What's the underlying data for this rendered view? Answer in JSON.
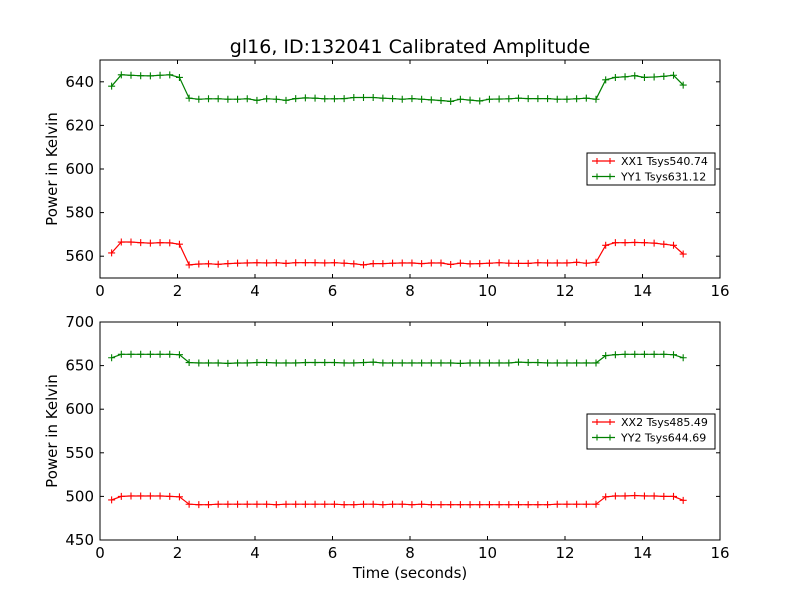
{
  "title": "gl16, ID:132041 Calibrated Amplitude",
  "chart_data": [
    {
      "type": "line",
      "ylabel": "Power in Kelvin",
      "xlabel": "",
      "xlim": [
        0,
        16
      ],
      "ylim": [
        550,
        650
      ],
      "xticks": [
        0,
        2,
        4,
        6,
        8,
        10,
        12,
        14,
        16
      ],
      "yticks": [
        560,
        580,
        600,
        620,
        640
      ],
      "legend": "right",
      "x": [
        0.3,
        0.55,
        0.8,
        1.05,
        1.3,
        1.55,
        1.8,
        2.05,
        2.3,
        2.55,
        2.8,
        3.05,
        3.3,
        3.55,
        3.8,
        4.05,
        4.3,
        4.55,
        4.8,
        5.05,
        5.3,
        5.55,
        5.8,
        6.05,
        6.3,
        6.55,
        6.8,
        7.05,
        7.3,
        7.55,
        7.8,
        8.05,
        8.3,
        8.55,
        8.8,
        9.05,
        9.3,
        9.55,
        9.8,
        10.05,
        10.3,
        10.55,
        10.8,
        11.05,
        11.3,
        11.55,
        11.8,
        12.05,
        12.3,
        12.55,
        12.8,
        13.05,
        13.3,
        13.55,
        13.8,
        14.05,
        14.3,
        14.55,
        14.8,
        15.05
      ],
      "series": [
        {
          "name": "XX1 Tsys540.74",
          "color": "#ff0000",
          "values": [
            561.5,
            566.5,
            566.5,
            566.2,
            566.0,
            566.2,
            566.1,
            565.5,
            556.0,
            556.4,
            556.5,
            556.3,
            556.6,
            556.8,
            556.9,
            557.0,
            556.9,
            557.0,
            556.7,
            557.0,
            557.0,
            557.0,
            556.9,
            557.0,
            556.8,
            556.5,
            556.0,
            556.6,
            556.6,
            556.8,
            556.9,
            556.9,
            556.6,
            556.9,
            556.9,
            556.2,
            556.8,
            556.5,
            556.6,
            556.8,
            557.0,
            556.8,
            556.7,
            556.7,
            557.0,
            556.9,
            556.9,
            556.9,
            557.2,
            556.8,
            557.2,
            565.0,
            566.2,
            566.2,
            566.3,
            566.2,
            566.0,
            565.5,
            565.0,
            561.0
          ]
        },
        {
          "name": "YY1 Tsys631.12",
          "color": "#008000",
          "values": [
            638.0,
            643.2,
            643.0,
            642.8,
            642.7,
            643.0,
            643.2,
            642.0,
            632.5,
            632.0,
            632.2,
            632.2,
            632.0,
            632.0,
            632.2,
            631.5,
            632.2,
            632.0,
            631.5,
            632.3,
            632.6,
            632.5,
            632.2,
            632.2,
            632.3,
            632.8,
            632.8,
            632.8,
            632.5,
            632.3,
            632.0,
            632.3,
            632.0,
            631.7,
            631.4,
            631.0,
            632.0,
            631.6,
            631.2,
            632.0,
            632.1,
            632.2,
            632.5,
            632.3,
            632.3,
            632.3,
            632.0,
            632.0,
            632.2,
            632.5,
            632.0,
            640.9,
            642.0,
            642.3,
            642.8,
            642.0,
            642.2,
            642.5,
            643.0,
            638.5
          ]
        }
      ]
    },
    {
      "type": "line",
      "ylabel": "Power in Kelvin",
      "xlabel": "Time (seconds)",
      "xlim": [
        0,
        16
      ],
      "ylim": [
        450,
        700
      ],
      "xticks": [
        0,
        2,
        4,
        6,
        8,
        10,
        12,
        14,
        16
      ],
      "yticks": [
        450,
        500,
        550,
        600,
        650,
        700
      ],
      "legend": "right",
      "x": [
        0.3,
        0.55,
        0.8,
        1.05,
        1.3,
        1.55,
        1.8,
        2.05,
        2.3,
        2.55,
        2.8,
        3.05,
        3.3,
        3.55,
        3.8,
        4.05,
        4.3,
        4.55,
        4.8,
        5.05,
        5.3,
        5.55,
        5.8,
        6.05,
        6.3,
        6.55,
        6.8,
        7.05,
        7.3,
        7.55,
        7.8,
        8.05,
        8.3,
        8.55,
        8.8,
        9.05,
        9.3,
        9.55,
        9.8,
        10.05,
        10.3,
        10.55,
        10.8,
        11.05,
        11.3,
        11.55,
        11.8,
        12.05,
        12.3,
        12.55,
        12.8,
        13.05,
        13.3,
        13.55,
        13.8,
        14.05,
        14.3,
        14.55,
        14.8,
        15.05
      ],
      "series": [
        {
          "name": "XX2 Tsys485.49",
          "color": "#ff0000",
          "values": [
            496.0,
            500.0,
            500.5,
            500.5,
            500.5,
            500.5,
            500.0,
            499.5,
            491.0,
            490.5,
            490.5,
            491.0,
            491.0,
            491.0,
            491.0,
            491.0,
            491.0,
            490.5,
            491.0,
            491.0,
            491.0,
            491.0,
            491.0,
            491.0,
            490.5,
            490.5,
            491.0,
            491.0,
            490.5,
            491.0,
            491.0,
            490.5,
            491.0,
            490.5,
            490.5,
            490.5,
            490.5,
            490.5,
            490.5,
            490.5,
            490.5,
            490.5,
            490.5,
            490.5,
            490.5,
            490.5,
            491.0,
            491.0,
            491.0,
            491.0,
            491.0,
            499.5,
            500.5,
            500.5,
            501.0,
            500.5,
            500.5,
            500.0,
            500.0,
            495.5
          ]
        },
        {
          "name": "YY2 Tsys644.69",
          "color": "#008000",
          "values": [
            659.0,
            663.0,
            663.0,
            663.0,
            663.0,
            663.0,
            663.0,
            662.5,
            653.5,
            653.0,
            653.0,
            653.0,
            652.5,
            653.0,
            653.0,
            653.5,
            653.5,
            653.0,
            653.0,
            653.0,
            653.5,
            653.5,
            653.5,
            653.5,
            653.0,
            653.0,
            653.5,
            654.0,
            653.0,
            653.0,
            653.0,
            653.0,
            653.0,
            653.0,
            653.0,
            653.0,
            652.5,
            653.0,
            653.0,
            653.0,
            653.0,
            653.0,
            654.0,
            653.5,
            653.5,
            653.0,
            653.0,
            653.0,
            653.0,
            653.0,
            653.0,
            661.5,
            662.5,
            663.0,
            663.0,
            663.0,
            663.0,
            663.0,
            662.5,
            659.0
          ]
        }
      ]
    }
  ]
}
